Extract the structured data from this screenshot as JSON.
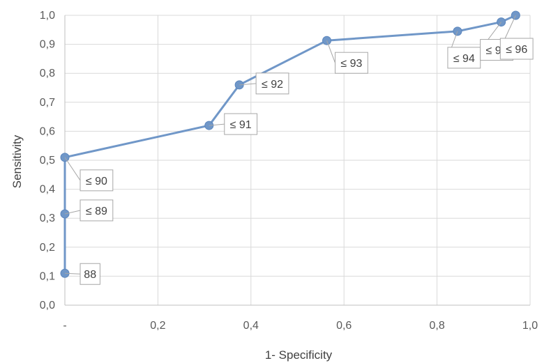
{
  "chart_data": {
    "type": "line",
    "title": "",
    "xlabel": "1- Specificity",
    "ylabel": "Sensitivity",
    "xlim": [
      0,
      1
    ],
    "ylim": [
      0,
      1
    ],
    "grid": true,
    "x_tick_labels": [
      "-",
      "0,2",
      "0,4",
      "0,6",
      "0,8",
      "1,0"
    ],
    "y_tick_labels": [
      "0,0",
      "0,1",
      "0,2",
      "0,3",
      "0,4",
      "0,5",
      "0,6",
      "0,7",
      "0,8",
      "0,9",
      "1,0"
    ],
    "series": [
      {
        "color": "#7097c8",
        "points": [
          {
            "x": 0.0,
            "y": 0.11,
            "label": "88"
          },
          {
            "x": 0.0,
            "y": 0.315,
            "label": "≤ 89"
          },
          {
            "x": 0.0,
            "y": 0.51,
            "label": "≤ 90"
          },
          {
            "x": 0.31,
            "y": 0.62,
            "label": "≤ 91"
          },
          {
            "x": 0.375,
            "y": 0.76,
            "label": "≤ 92"
          },
          {
            "x": 0.563,
            "y": 0.913,
            "label": "≤ 93"
          },
          {
            "x": 0.844,
            "y": 0.945,
            "label": "≤ 94"
          },
          {
            "x": 0.938,
            "y": 0.977,
            "label": "≤ 95"
          },
          {
            "x": 0.969,
            "y": 1.0,
            "label": "≤ 96"
          }
        ]
      }
    ]
  }
}
